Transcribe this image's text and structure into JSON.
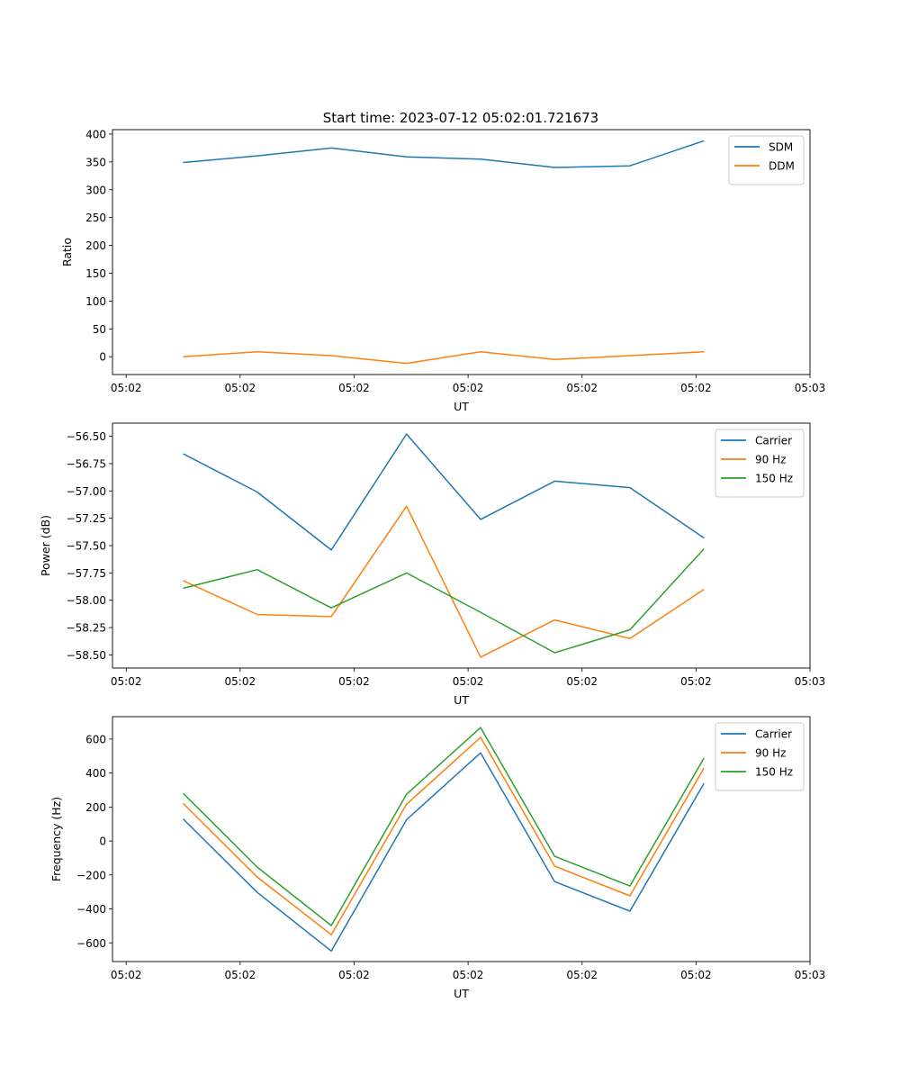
{
  "figure_title": "Start time: 2023-07-12 05:02:01.721673",
  "colors": {
    "blue": "#1f77b4",
    "orange": "#ff7f0e",
    "green": "#2ca02c"
  },
  "chart_data": [
    {
      "type": "line",
      "title": "Start time: 2023-07-12 05:02:01.721673",
      "xlabel": "UT",
      "ylabel": "Ratio",
      "x_units": "seconds after 05:02:00",
      "x": [
        5.0,
        11.5,
        18.0,
        24.6,
        31.1,
        37.6,
        44.2,
        50.7
      ],
      "xlim": [
        -1.2,
        60
      ],
      "xticks": [
        0,
        10,
        20,
        30,
        40,
        50,
        60
      ],
      "xtick_labels": [
        "05:02",
        "05:02",
        "05:02",
        "05:02",
        "05:02",
        "05:02",
        "05:03"
      ],
      "ylim": [
        -32,
        408
      ],
      "yticks": [
        0,
        50,
        100,
        150,
        200,
        250,
        300,
        350,
        400
      ],
      "ytick_labels": [
        "0",
        "50",
        "100",
        "150",
        "200",
        "250",
        "300",
        "350",
        "400"
      ],
      "legend": "top-right",
      "series": [
        {
          "name": "SDM",
          "color": "#1f77b4",
          "values": [
            349,
            361,
            375,
            359,
            355,
            340,
            343,
            388
          ]
        },
        {
          "name": "DDM",
          "color": "#ff7f0e",
          "values": [
            0,
            9,
            2,
            -12,
            9,
            -5,
            2,
            9
          ]
        }
      ]
    },
    {
      "type": "line",
      "title": "",
      "xlabel": "UT",
      "ylabel": "Power (dB)",
      "x_units": "seconds after 05:02:00",
      "x": [
        5.0,
        11.5,
        18.0,
        24.6,
        31.1,
        37.6,
        44.2,
        50.7
      ],
      "xlim": [
        -1.2,
        60
      ],
      "xticks": [
        0,
        10,
        20,
        30,
        40,
        50,
        60
      ],
      "xtick_labels": [
        "05:02",
        "05:02",
        "05:02",
        "05:02",
        "05:02",
        "05:02",
        "05:03"
      ],
      "ylim": [
        -58.62,
        -56.38
      ],
      "yticks": [
        -56.5,
        -56.75,
        -57.0,
        -57.25,
        -57.5,
        -57.75,
        -58.0,
        -58.25,
        -58.5
      ],
      "ytick_labels": [
        "−56.50",
        "−56.75",
        "−57.00",
        "−57.25",
        "−57.50",
        "−57.75",
        "−58.00",
        "−58.25",
        "−58.50"
      ],
      "legend": "top-right",
      "series": [
        {
          "name": "Carrier",
          "color": "#1f77b4",
          "values": [
            -56.66,
            -57.01,
            -57.54,
            -56.48,
            -57.26,
            -56.91,
            -56.97,
            -57.43
          ]
        },
        {
          "name": "90 Hz",
          "color": "#ff7f0e",
          "values": [
            -57.82,
            -58.13,
            -58.15,
            -57.14,
            -58.52,
            -58.18,
            -58.35,
            -57.9
          ]
        },
        {
          "name": "150 Hz",
          "color": "#2ca02c",
          "values": [
            -57.89,
            -57.72,
            -58.07,
            -57.75,
            -58.11,
            -58.48,
            -58.27,
            -57.53
          ]
        }
      ]
    },
    {
      "type": "line",
      "title": "",
      "xlabel": "UT",
      "ylabel": "Frequency (Hz)",
      "x_units": "seconds after 05:02:00",
      "x": [
        5.0,
        11.5,
        18.0,
        24.6,
        31.1,
        37.6,
        44.2,
        50.7
      ],
      "xlim": [
        -1.2,
        60
      ],
      "xticks": [
        0,
        10,
        20,
        30,
        40,
        50,
        60
      ],
      "xtick_labels": [
        "05:02",
        "05:02",
        "05:02",
        "05:02",
        "05:02",
        "05:02",
        "05:03"
      ],
      "ylim": [
        -710,
        732
      ],
      "yticks": [
        -600,
        -400,
        -200,
        0,
        200,
        400,
        600
      ],
      "ytick_labels": [
        "−600",
        "−400",
        "−200",
        "0",
        "200",
        "400",
        "600"
      ],
      "legend": "top-right",
      "series": [
        {
          "name": "Carrier",
          "color": "#1f77b4",
          "values": [
            130,
            -303,
            -648,
            125,
            519,
            -239,
            -413,
            339
          ]
        },
        {
          "name": "90 Hz",
          "color": "#ff7f0e",
          "values": [
            221,
            -212,
            -552,
            216,
            610,
            -148,
            -323,
            429
          ]
        },
        {
          "name": "150 Hz",
          "color": "#2ca02c",
          "values": [
            281,
            -154,
            -498,
            275,
            668,
            -90,
            -265,
            488
          ]
        }
      ]
    }
  ]
}
